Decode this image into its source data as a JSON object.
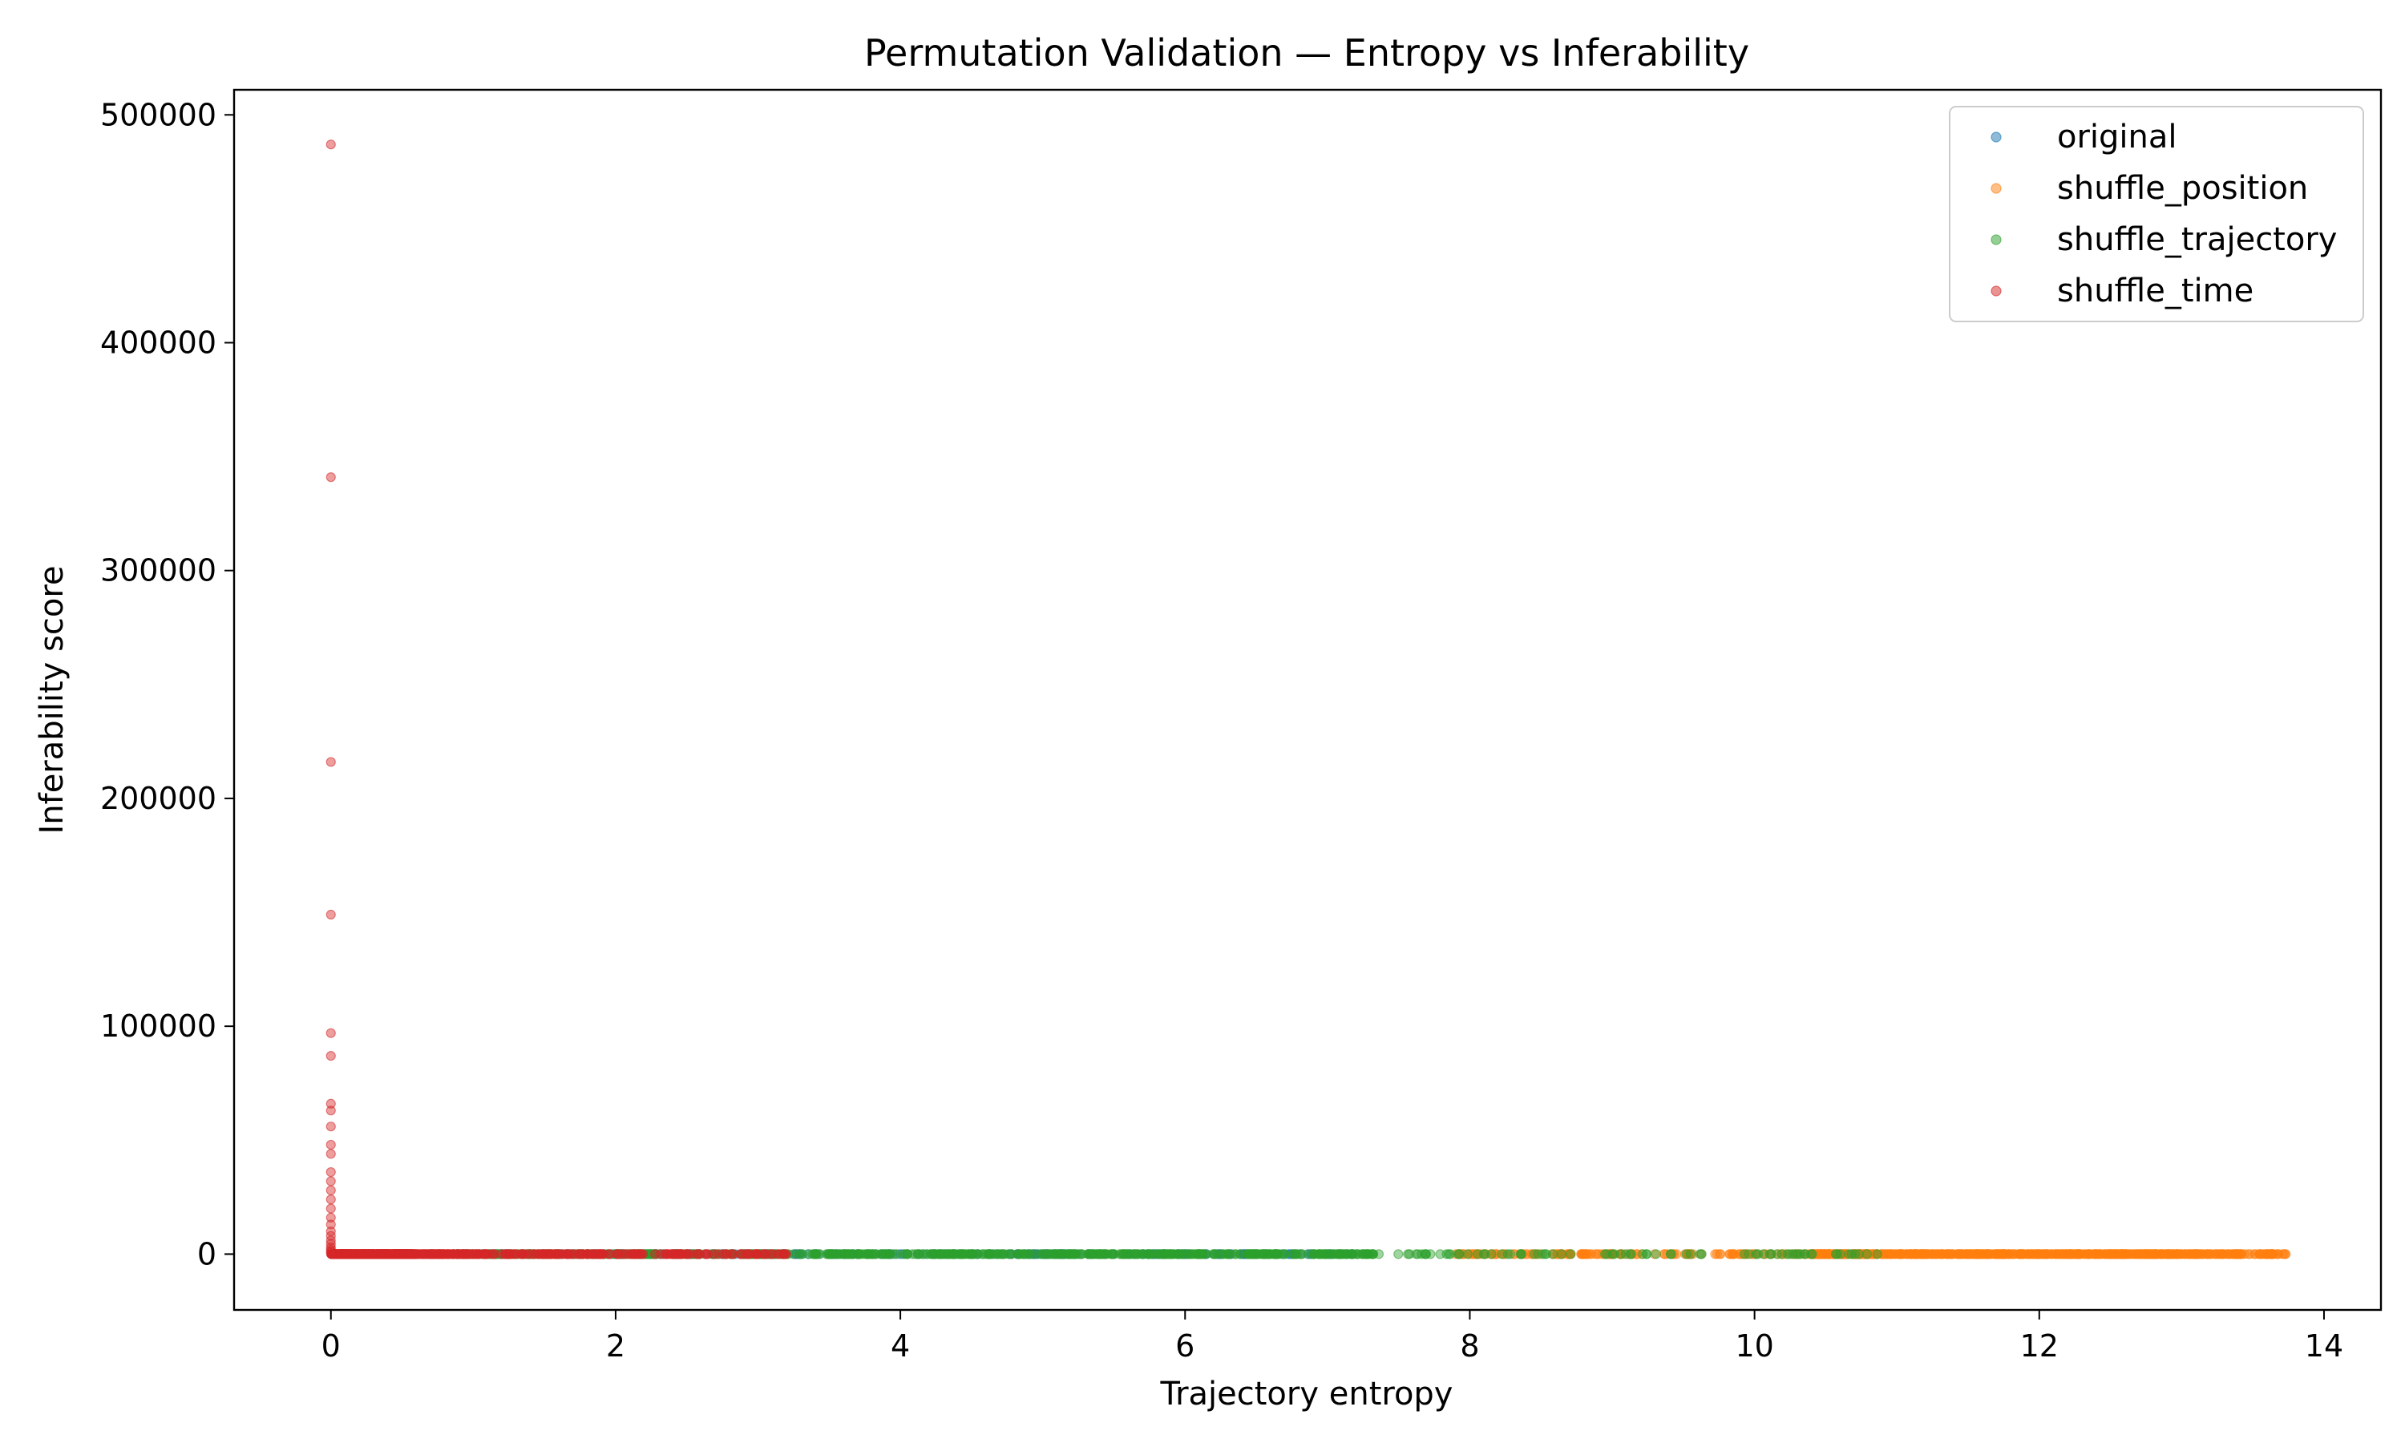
{
  "chart_data": {
    "type": "scatter",
    "title": "Permutation Validation — Entropy vs Inferability",
    "xlabel": "Trajectory entropy",
    "ylabel": "Inferability score",
    "xlim": [
      -0.68,
      14.4
    ],
    "ylim": [
      -24500,
      511000
    ],
    "xticks": [
      0,
      2,
      4,
      6,
      8,
      10,
      12,
      14
    ],
    "yticks": [
      0,
      100000,
      200000,
      300000,
      400000,
      500000
    ],
    "grid": false,
    "legend_position": "top-right",
    "series": [
      {
        "name": "original",
        "color": "#1f77b4",
        "x_range": [
          0.3,
          7.2
        ],
        "y": 0
      },
      {
        "name": "shuffle_position",
        "color": "#ff7f0e",
        "x_range": [
          7.9,
          13.7
        ],
        "y": 0
      },
      {
        "name": "shuffle_trajectory",
        "color": "#2ca02c",
        "x_range": [
          0.4,
          10.9
        ],
        "y": 0
      },
      {
        "name": "shuffle_time",
        "color": "#d62728",
        "x_range": [
          0.0,
          3.2
        ],
        "y": 0,
        "x_zero_values": [
          487000,
          341000,
          216000,
          149000,
          97000,
          87000,
          66000,
          63000,
          56000,
          48000,
          44000,
          36000,
          32000,
          28000,
          24000,
          20000,
          16000,
          13000,
          10000,
          8000,
          6000,
          4500,
          3000,
          2000,
          1200,
          600
        ]
      }
    ]
  }
}
